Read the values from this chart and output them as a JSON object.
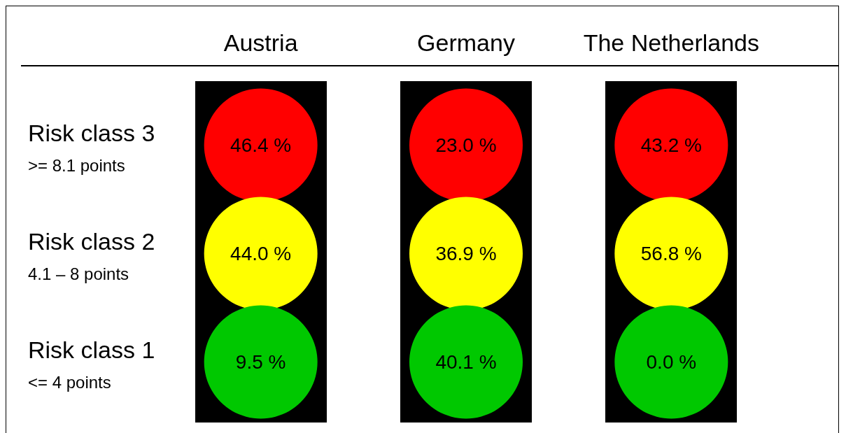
{
  "chart_data": {
    "type": "other",
    "categories": [
      "Austria",
      "Germany",
      "The Netherlands"
    ],
    "series": [
      {
        "name": "Risk class 3\n>= 8.1 points",
        "color": "#ff0000",
        "values": [
          46.4,
          23.0,
          43.2
        ],
        "value_labels": [
          "46.4 %",
          "23.0 %",
          "43.2 %"
        ]
      },
      {
        "name": "Risk class 2\n4.1 – 8 points",
        "color": "#ffff00",
        "values": [
          44.0,
          36.9,
          56.8
        ],
        "value_labels": [
          "44.0 %",
          "36.9 %",
          "56.8 %"
        ]
      },
      {
        "name": "Risk class 1\n<= 4 points",
        "color": "#00c800",
        "values": [
          9.5,
          40.1,
          0.0
        ],
        "value_labels": [
          "9.5 %",
          "40.1 %",
          "0.0 %"
        ]
      }
    ]
  }
}
